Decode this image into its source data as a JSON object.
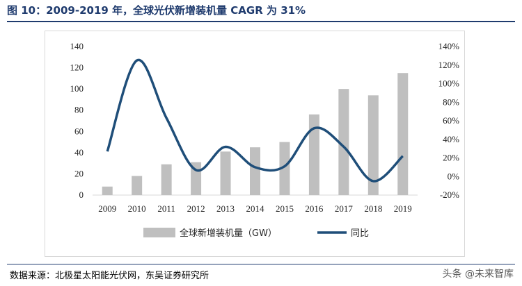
{
  "title": "图 10：2009-2019 年，全球光伏新增装机量 CAGR 为 31%",
  "source": "数据来源：北极星太阳能光伏网，东吴证券研究所",
  "watermark": "头条 @未来智库",
  "colors": {
    "bar": "#bfbfbf",
    "line": "#1f4e79",
    "title": "#1f3b6e"
  },
  "chart_data": {
    "type": "bar",
    "categories": [
      "2009",
      "2010",
      "2011",
      "2012",
      "2013",
      "2014",
      "2015",
      "2016",
      "2017",
      "2018",
      "2019"
    ],
    "series": [
      {
        "name": "全球新增装机量（GW）",
        "type": "bar",
        "axis": "left",
        "values": [
          8,
          18,
          29,
          31,
          41,
          45,
          50,
          76,
          100,
          94,
          115
        ]
      },
      {
        "name": "同比",
        "type": "line",
        "axis": "right",
        "values": [
          27,
          125,
          63,
          7,
          32,
          10,
          11,
          52,
          32,
          -5,
          22
        ]
      }
    ],
    "ylim_left": [
      0,
      140
    ],
    "ylim_right": [
      -20,
      140
    ],
    "yticks_left": [
      "0",
      "20",
      "40",
      "60",
      "80",
      "100",
      "120",
      "140"
    ],
    "yticks_right": [
      "-20%",
      "0%",
      "20%",
      "40%",
      "60%",
      "80%",
      "100%",
      "120%",
      "140%"
    ],
    "grid": false,
    "legend": "bottom"
  }
}
